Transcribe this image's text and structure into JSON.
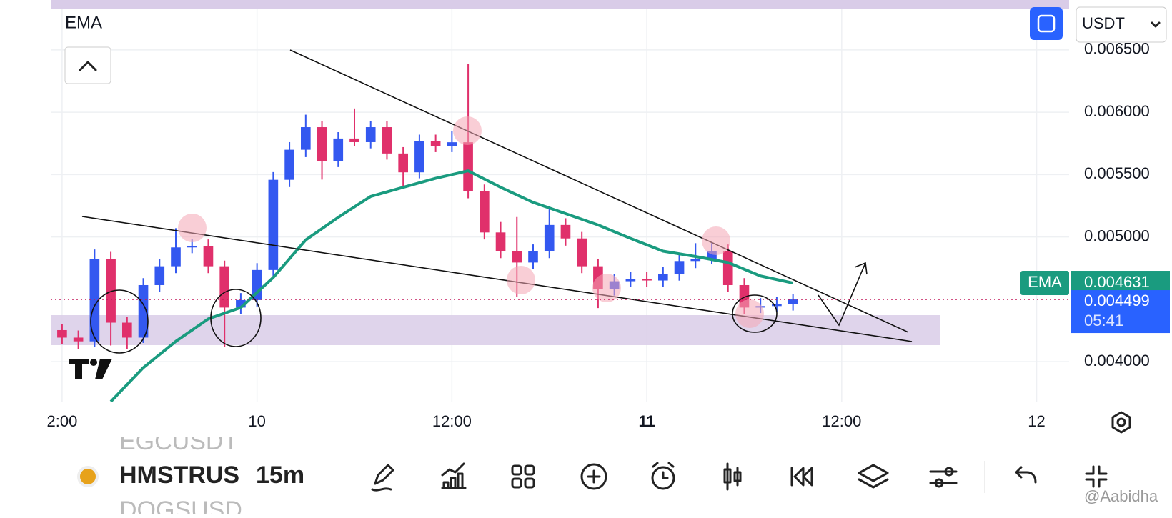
{
  "ui": {
    "indicator_label": "EMA",
    "currency": "USDT",
    "symbols": [
      "EGCUSDT",
      "HMSTRUS",
      "DOGSUSD"
    ],
    "interval": "15m",
    "countdown": "05:41",
    "watermark": "@Aabidha"
  },
  "chart_data": {
    "type": "candlestick",
    "x": [
      -12,
      -11,
      -10,
      -9,
      -8,
      -7,
      -6,
      -5,
      -4,
      -3,
      -2,
      -1,
      0,
      1,
      2,
      3,
      4,
      5,
      6,
      7,
      8,
      9,
      10,
      11,
      12,
      13,
      14,
      15,
      16,
      17,
      18,
      19,
      20,
      21,
      22,
      23,
      24,
      25,
      26,
      27,
      28,
      29,
      30,
      31,
      32,
      33
    ],
    "candles": [
      [
        0.004253,
        0.0043,
        0.00414,
        0.004193
      ],
      [
        0.004193,
        0.00425,
        0.0041,
        0.004163
      ],
      [
        0.004163,
        0.0049,
        0.00412,
        0.004825
      ],
      [
        0.004825,
        0.00488,
        0.00413,
        0.004313
      ],
      [
        0.004313,
        0.00436,
        0.0041,
        0.004193
      ],
      [
        0.004193,
        0.00467,
        0.00415,
        0.004614
      ],
      [
        0.004614,
        0.00482,
        0.00456,
        0.004765
      ],
      [
        0.004765,
        0.00507,
        0.00471,
        0.004916
      ],
      [
        0.004916,
        0.00498,
        0.00487,
        0.004928
      ],
      [
        0.004928,
        0.00498,
        0.00471,
        0.004765
      ],
      [
        0.004765,
        0.00481,
        0.00412,
        0.004434
      ],
      [
        0.004434,
        0.00455,
        0.00438,
        0.004494
      ],
      [
        0.004494,
        0.00479,
        0.00444,
        0.004735
      ],
      [
        0.004735,
        0.00552,
        0.00468,
        0.005458
      ],
      [
        0.005458,
        0.00576,
        0.0054,
        0.005699
      ],
      [
        0.005699,
        0.00598,
        0.00564,
        0.00588
      ],
      [
        0.00588,
        0.00593,
        0.00546,
        0.005608
      ],
      [
        0.005608,
        0.00584,
        0.00556,
        0.005789
      ],
      [
        0.005789,
        0.00603,
        0.00573,
        0.00576
      ],
      [
        0.00576,
        0.00593,
        0.00571,
        0.00588
      ],
      [
        0.00588,
        0.00593,
        0.00562,
        0.005669
      ],
      [
        0.005669,
        0.00572,
        0.0054,
        0.005518
      ],
      [
        0.005518,
        0.00582,
        0.00547,
        0.005771
      ],
      [
        0.005771,
        0.00582,
        0.00568,
        0.005729
      ],
      [
        0.005729,
        0.00585,
        0.00568,
        0.005759
      ],
      [
        0.005759,
        0.00639,
        0.00531,
        0.005367
      ],
      [
        0.005367,
        0.00542,
        0.00498,
        0.005036
      ],
      [
        0.005036,
        0.00512,
        0.00483,
        0.004886
      ],
      [
        0.004886,
        0.00516,
        0.00452,
        0.004795
      ],
      [
        0.004795,
        0.00494,
        0.00474,
        0.004886
      ],
      [
        0.004886,
        0.00524,
        0.00483,
        0.005096
      ],
      [
        0.005096,
        0.00515,
        0.00493,
        0.004988
      ],
      [
        0.004988,
        0.00504,
        0.00471,
        0.004765
      ],
      [
        0.004765,
        0.00482,
        0.00443,
        0.004584
      ],
      [
        0.004584,
        0.0047,
        0.00453,
        0.004645
      ],
      [
        0.004645,
        0.00472,
        0.0046,
        0.004663
      ],
      [
        0.004663,
        0.00472,
        0.0046,
        0.004651
      ],
      [
        0.004651,
        0.00476,
        0.0046,
        0.004705
      ],
      [
        0.004705,
        0.00486,
        0.00465,
        0.004807
      ],
      [
        0.004807,
        0.00495,
        0.00475,
        0.004825
      ],
      [
        0.004825,
        0.00495,
        0.00478,
        0.004886
      ],
      [
        0.004886,
        0.00494,
        0.00456,
        0.004614
      ],
      [
        0.004614,
        0.00467,
        0.00438,
        0.004434
      ],
      [
        0.004434,
        0.00451,
        0.00439,
        0.004446
      ],
      [
        0.004446,
        0.00452,
        0.0044,
        0.004464
      ],
      [
        0.004464,
        0.00454,
        0.00441,
        0.004499
      ]
    ],
    "last_price_label": "0.004499",
    "up_color": "#3358f0",
    "down_color": "#e0306b",
    "ema": {
      "name": "EMA",
      "color": "#1a9b7f",
      "x": [
        -9,
        -7,
        -5,
        -3,
        -1,
        1,
        3,
        5,
        7,
        9,
        11,
        13,
        15,
        17,
        19,
        21,
        23,
        25,
        27,
        29,
        31,
        33
      ],
      "values": [
        0.00368,
        0.003952,
        0.004163,
        0.004343,
        0.004434,
        0.004675,
        0.004976,
        0.005157,
        0.005325,
        0.005398,
        0.00547,
        0.00553,
        0.005398,
        0.005277,
        0.005187,
        0.005096,
        0.004988,
        0.004886,
        0.004843,
        0.004795,
        0.004687,
        0.004631
      ],
      "value_label": "0.004631"
    },
    "ylim": [
      0.00368,
      0.0069
    ],
    "yticks": [
      {
        "value": 0.0065,
        "label": "0.006500"
      },
      {
        "value": 0.006,
        "label": "0.006000"
      },
      {
        "value": 0.0055,
        "label": "0.005500"
      },
      {
        "value": 0.005,
        "label": "0.005000"
      },
      {
        "value": 0.004,
        "label": "0.004000"
      }
    ],
    "xlim": [
      -12.7,
      50
    ],
    "xticks": [
      {
        "value": -12,
        "label": "2:00"
      },
      {
        "value": 0,
        "label": "10"
      },
      {
        "value": 12,
        "label": "12:00"
      },
      {
        "value": 24,
        "label": "11"
      },
      {
        "value": 36,
        "label": "12:00"
      },
      {
        "value": 48,
        "label": "12"
      }
    ],
    "grid": true
  }
}
